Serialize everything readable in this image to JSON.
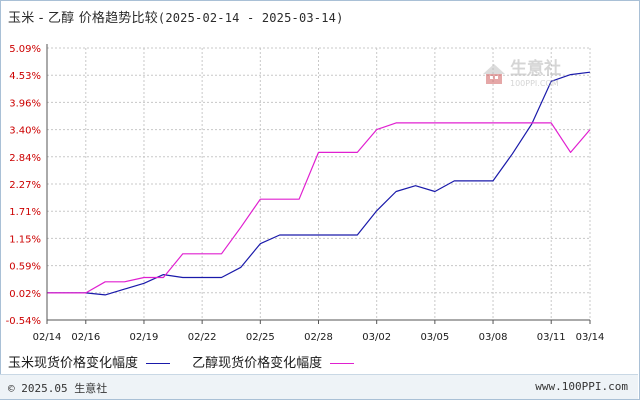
{
  "title": {
    "main": "玉米 - 乙醇 价格趋势比较",
    "range": "(2025-02-14 - 2025-03-14)"
  },
  "footer": {
    "left": "© 2025.05 生意社",
    "right": "www.100PPI.com"
  },
  "watermark": {
    "name": "生意社",
    "url": "100PPI.COM"
  },
  "colors": {
    "corn": "#1a1aaa",
    "ethanol": "#e020d0",
    "grid": "#c8c8c8",
    "axis": "#555555",
    "ytick": "#cc0000",
    "xtick": "#1a1a1a"
  },
  "chart_data": {
    "type": "line",
    "title": "玉米 - 乙醇 价格趋势比较",
    "x_tick_labels": [
      "02/14",
      "02/16",
      "02/19",
      "02/22",
      "02/25",
      "02/28",
      "03/02",
      "03/05",
      "03/08",
      "03/11",
      "03/14"
    ],
    "x_tick_indices": [
      0,
      2,
      5,
      8,
      11,
      14,
      17,
      20,
      23,
      26,
      28
    ],
    "y_tick_labels": [
      "-0.54%",
      "0.02%",
      "0.59%",
      "1.15%",
      "1.71%",
      "2.27%",
      "2.84%",
      "3.40%",
      "3.96%",
      "4.53%",
      "5.09%"
    ],
    "ylim": [
      -0.54,
      5.09
    ],
    "unit": "%",
    "grid": true,
    "legend_position": "bottom",
    "series": [
      {
        "name": "玉米现货价格变化幅度",
        "color": "#1a1aaa",
        "values": [
          0.02,
          0.02,
          0.02,
          -0.02,
          0.1,
          0.22,
          0.4,
          0.34,
          0.34,
          0.34,
          0.55,
          1.04,
          1.22,
          1.22,
          1.22,
          1.22,
          1.22,
          1.72,
          2.12,
          2.24,
          2.12,
          2.34,
          2.34,
          2.34,
          2.9,
          3.52,
          4.4,
          4.54,
          4.59
        ]
      },
      {
        "name": "乙醇现货价格变化幅度",
        "color": "#e020d0",
        "values": [
          0.02,
          0.02,
          0.02,
          0.25,
          0.25,
          0.34,
          0.34,
          0.83,
          0.83,
          0.83,
          1.38,
          1.96,
          1.96,
          1.96,
          2.93,
          2.93,
          2.93,
          3.4,
          3.54,
          3.54,
          3.54,
          3.54,
          3.54,
          3.54,
          3.54,
          3.54,
          3.54,
          2.93,
          3.4
        ]
      }
    ]
  }
}
